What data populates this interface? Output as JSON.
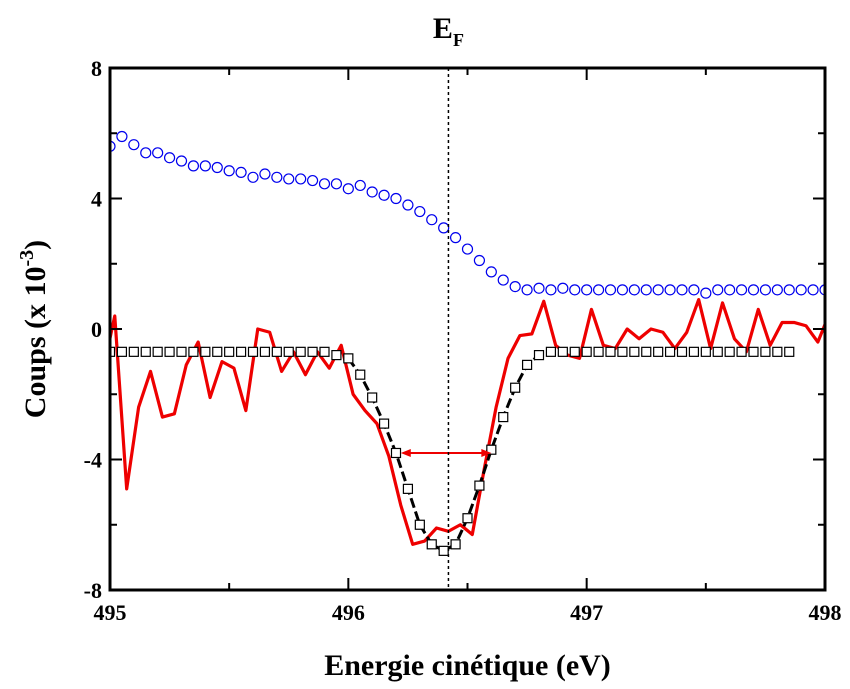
{
  "chart_data": {
    "type": "line",
    "title": "",
    "annotation": {
      "text": "E",
      "subscript": "F",
      "x": 496.42
    },
    "xlabel": "Energie cinétique (eV)",
    "ylabel": {
      "main": "Coups (x 10",
      "superscript": "-3",
      "close": ")"
    },
    "xlim": [
      495,
      498
    ],
    "ylim": [
      -8,
      8
    ],
    "xticks": [
      495,
      496,
      497,
      498
    ],
    "xtick_labels": [
      "495",
      "496",
      "497",
      "498"
    ],
    "yticks": [
      -8,
      -4,
      0,
      4,
      8
    ],
    "ytick_labels": [
      "-8",
      "-4",
      "0",
      "4",
      "8"
    ],
    "grid": false,
    "fwhm_arrow": {
      "x_start": 496.22,
      "x_end": 496.6,
      "y": -3.8
    },
    "colors": {
      "blue": "#0000ee",
      "red": "#ee0000",
      "black": "#000000",
      "fit": "#000000"
    },
    "series": [
      {
        "style": "blue-open-circles",
        "x": [
          495.0,
          495.05,
          495.1,
          495.15,
          495.2,
          495.25,
          495.3,
          495.35,
          495.4,
          495.45,
          495.5,
          495.55,
          495.6,
          495.65,
          495.7,
          495.75,
          495.8,
          495.85,
          495.9,
          495.95,
          496.0,
          496.05,
          496.1,
          496.15,
          496.2,
          496.25,
          496.3,
          496.35,
          496.4,
          496.45,
          496.5,
          496.55,
          496.6,
          496.65,
          496.7,
          496.75,
          496.8,
          496.85,
          496.9,
          496.95,
          497.0,
          497.05,
          497.1,
          497.15,
          497.2,
          497.25,
          497.3,
          497.35,
          497.4,
          497.45,
          497.5,
          497.55,
          497.6,
          497.65,
          497.7,
          497.75,
          497.8,
          497.85,
          497.9,
          497.95,
          498.0
        ],
        "y": [
          5.6,
          5.9,
          5.65,
          5.4,
          5.4,
          5.25,
          5.15,
          5.0,
          5.0,
          4.95,
          4.85,
          4.8,
          4.65,
          4.75,
          4.65,
          4.6,
          4.6,
          4.55,
          4.45,
          4.45,
          4.3,
          4.4,
          4.2,
          4.1,
          4.0,
          3.8,
          3.6,
          3.35,
          3.1,
          2.8,
          2.45,
          2.1,
          1.75,
          1.5,
          1.3,
          1.2,
          1.25,
          1.2,
          1.25,
          1.2,
          1.2,
          1.2,
          1.2,
          1.2,
          1.2,
          1.2,
          1.2,
          1.2,
          1.2,
          1.2,
          1.1,
          1.2,
          1.2,
          1.2,
          1.2,
          1.2,
          1.2,
          1.2,
          1.2,
          1.2,
          1.2
        ]
      },
      {
        "style": "red-line",
        "x": [
          494.97,
          495.02,
          495.07,
          495.12,
          495.17,
          495.22,
          495.27,
          495.32,
          495.37,
          495.42,
          495.47,
          495.52,
          495.57,
          495.62,
          495.67,
          495.72,
          495.77,
          495.82,
          495.87,
          495.92,
          495.97,
          496.02,
          496.07,
          496.12,
          496.17,
          496.22,
          496.27,
          496.32,
          496.37,
          496.42,
          496.47,
          496.52,
          496.57,
          496.62,
          496.67,
          496.72,
          496.77,
          496.82,
          496.87,
          496.92,
          496.97,
          497.02,
          497.07,
          497.12,
          497.17,
          497.22,
          497.27,
          497.32,
          497.37,
          497.42,
          497.47,
          497.52,
          497.57,
          497.62,
          497.67,
          497.72,
          497.77,
          497.82,
          497.87,
          497.92,
          497.97,
          498.02
        ],
        "y": [
          -1.3,
          0.4,
          -4.9,
          -2.4,
          -1.3,
          -2.7,
          -2.6,
          -1.1,
          -0.4,
          -2.1,
          -1.0,
          -1.2,
          -2.5,
          0.0,
          -0.1,
          -1.3,
          -0.7,
          -1.4,
          -0.7,
          -1.2,
          -0.5,
          -2.0,
          -2.5,
          -2.9,
          -3.9,
          -5.4,
          -6.6,
          -6.5,
          -6.1,
          -6.2,
          -6.0,
          -6.3,
          -4.3,
          -2.4,
          -0.9,
          -0.2,
          -0.15,
          0.85,
          -0.5,
          -0.8,
          -0.9,
          0.6,
          -0.5,
          -0.6,
          0.0,
          -0.3,
          0.0,
          -0.1,
          -0.6,
          -0.1,
          0.9,
          -0.6,
          0.8,
          -0.3,
          -0.7,
          0.6,
          -0.5,
          0.2,
          0.2,
          0.1,
          -0.4,
          0.5
        ]
      },
      {
        "style": "black-open-squares",
        "x": [
          495.0,
          495.05,
          495.1,
          495.15,
          495.2,
          495.25,
          495.3,
          495.35,
          495.4,
          495.45,
          495.5,
          495.55,
          495.6,
          495.65,
          495.7,
          495.75,
          495.8,
          495.85,
          495.9,
          495.95,
          496.0,
          496.05,
          496.1,
          496.15,
          496.2,
          496.25,
          496.3,
          496.35,
          496.4,
          496.45,
          496.5,
          496.55,
          496.6,
          496.65,
          496.7,
          496.75,
          496.8,
          496.85,
          496.9,
          496.95,
          497.0,
          497.05,
          497.1,
          497.15,
          497.2,
          497.25,
          497.3,
          497.35,
          497.4,
          497.45,
          497.5,
          497.55,
          497.6,
          497.65,
          497.7,
          497.75,
          497.8,
          497.85
        ],
        "y": [
          -0.7,
          -0.7,
          -0.7,
          -0.7,
          -0.7,
          -0.7,
          -0.7,
          -0.7,
          -0.7,
          -0.7,
          -0.7,
          -0.7,
          -0.7,
          -0.7,
          -0.7,
          -0.7,
          -0.7,
          -0.7,
          -0.7,
          -0.8,
          -0.9,
          -1.4,
          -2.1,
          -2.9,
          -3.8,
          -4.9,
          -6.0,
          -6.6,
          -6.8,
          -6.6,
          -5.8,
          -4.8,
          -3.7,
          -2.7,
          -1.8,
          -1.1,
          -0.8,
          -0.7,
          -0.7,
          -0.7,
          -0.7,
          -0.7,
          -0.7,
          -0.7,
          -0.7,
          -0.7,
          -0.7,
          -0.7,
          -0.7,
          -0.7,
          -0.7,
          -0.7,
          -0.7,
          -0.7,
          -0.7,
          -0.7,
          -0.7,
          -0.7
        ]
      },
      {
        "style": "black-dashed-fit",
        "x": [
          496.0,
          496.05,
          496.1,
          496.15,
          496.2,
          496.25,
          496.3,
          496.35,
          496.4,
          496.45,
          496.5,
          496.55,
          496.6,
          496.65,
          496.7,
          496.75,
          496.8
        ],
        "y": [
          -0.9,
          -1.4,
          -2.1,
          -2.9,
          -3.8,
          -4.9,
          -6.0,
          -6.6,
          -6.8,
          -6.6,
          -5.8,
          -4.8,
          -3.7,
          -2.7,
          -1.8,
          -1.1,
          -0.8
        ]
      }
    ]
  }
}
